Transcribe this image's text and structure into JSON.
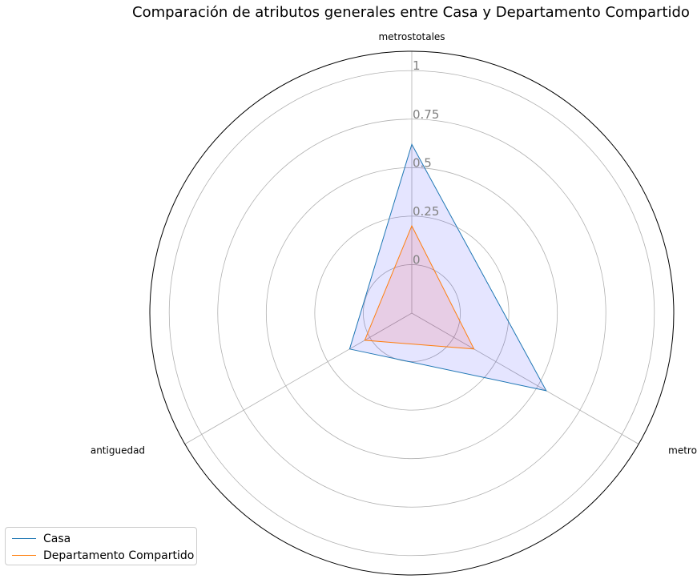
{
  "chart_data": {
    "type": "radar",
    "title": "Comparación de atributos generales entre Casa y Departamento Compartido",
    "axes": [
      "metrostotales",
      "metroscubiertos",
      "antiguedad"
    ],
    "radial_ticks": [
      {
        "value": 0,
        "label": "0"
      },
      {
        "value": 0.25,
        "label": "0.25"
      },
      {
        "value": 0.5,
        "label": "0.5"
      },
      {
        "value": 0.75,
        "label": "0.75"
      },
      {
        "value": 1,
        "label": "1"
      }
    ],
    "rlim": [
      -0.25,
      1.1
    ],
    "series": [
      {
        "name": "Casa",
        "values": [
          0.62,
          0.55,
          0.12
        ],
        "color": "#1f77b4",
        "fill": "#0000ff",
        "fill_opacity": 0.1
      },
      {
        "name": "Departamento Compartido",
        "values": [
          0.2,
          0.12,
          0.03
        ],
        "color": "#ff7f0e",
        "fill": "#ff0000",
        "fill_opacity": 0.1
      }
    ],
    "grid": true,
    "legend": "bottom-left"
  }
}
